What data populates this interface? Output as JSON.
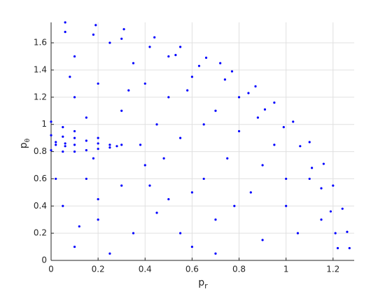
{
  "chart_data": {
    "type": "scatter",
    "xlabel": {
      "text": "p",
      "subscript": "r"
    },
    "ylabel": {
      "text": "p",
      "subscript": "θ"
    },
    "color": "#0000ff",
    "grid": true,
    "xlim": [
      0,
      1.29
    ],
    "ylim": [
      0,
      1.75
    ],
    "xticks": [
      0,
      0.2,
      0.4,
      0.6,
      0.8,
      1,
      1.2
    ],
    "yticks": [
      0,
      0.2,
      0.4,
      0.6,
      0.8,
      1,
      1.2,
      1.4,
      1.6
    ],
    "x": [
      0.06,
      0.19,
      0.31,
      0.44,
      0.55,
      0.66,
      0.77,
      0.87,
      0.95,
      1.03,
      1.1,
      1.16,
      1.2,
      1.24,
      1.26,
      1.27,
      0.06,
      0.18,
      0.3,
      0.42,
      0.53,
      0.63,
      0.74,
      0.84,
      0.91,
      0.99,
      1.06,
      1.11,
      1.15,
      1.19,
      1.21,
      1.22,
      0,
      0.05,
      0.1,
      0.15,
      0.2,
      0.25,
      0.28,
      0.25,
      0.2,
      0.15,
      0.1,
      0.05,
      0,
      0.02,
      0.06,
      0.1,
      0.06,
      0.02,
      0,
      0.05,
      0.1,
      0.2,
      0.3,
      0.1,
      0.2,
      0.35,
      0.5,
      0.6,
      0.7,
      0.45,
      0.55,
      0.8,
      0.9,
      0.65,
      0.4,
      0.3,
      0.15,
      0.05,
      0.2,
      0.35,
      0.5,
      0.7,
      0.85,
      1.0,
      1.05,
      0.9,
      0.6,
      0.1,
      0.25,
      0.75,
      0.95,
      0.3,
      0.1,
      0.15,
      0.4,
      0.25,
      0.5,
      0.8,
      0.65,
      1.1,
      0.45,
      0.55,
      0.02,
      0.08,
      0.38,
      0.6,
      0.78,
      1.15,
      0.2,
      0.12,
      0.42,
      0.7,
      1.0,
      0.88,
      0.33,
      0.58,
      0.48,
      0.18,
      0.72
    ],
    "values": [
      1.75,
      1.73,
      1.7,
      1.64,
      1.57,
      1.49,
      1.39,
      1.28,
      1.16,
      1.02,
      0.87,
      0.71,
      0.55,
      0.38,
      0.21,
      0.09,
      1.68,
      1.66,
      1.63,
      1.57,
      1.51,
      1.43,
      1.33,
      1.23,
      1.11,
      0.98,
      0.84,
      0.68,
      0.53,
      0.36,
      0.2,
      0.09,
      0.92,
      0.91,
      0.9,
      0.88,
      0.86,
      0.85,
      0.84,
      0.83,
      0.82,
      0.81,
      0.8,
      0.8,
      0.81,
      0.87,
      0.86,
      0.85,
      0.84,
      0.85,
      1.02,
      0.98,
      0.95,
      0.9,
      0.85,
      1.5,
      1.3,
      1.45,
      1.2,
      1.35,
      1.1,
      1.0,
      0.9,
      0.95,
      0.7,
      0.6,
      0.7,
      0.55,
      0.6,
      0.4,
      0.3,
      0.2,
      0.45,
      0.3,
      0.5,
      0.4,
      0.2,
      0.15,
      0.1,
      0.1,
      0.05,
      0.75,
      0.85,
      1.1,
      1.2,
      1.05,
      1.3,
      1.6,
      1.5,
      1.2,
      1.0,
      0.6,
      0.35,
      0.2,
      0.6,
      1.35,
      0.85,
      0.5,
      0.4,
      0.3,
      0.45,
      0.25,
      0.55,
      0.05,
      0.6,
      1.05,
      1.25,
      1.25,
      0.75,
      0.75,
      1.45
    ]
  }
}
